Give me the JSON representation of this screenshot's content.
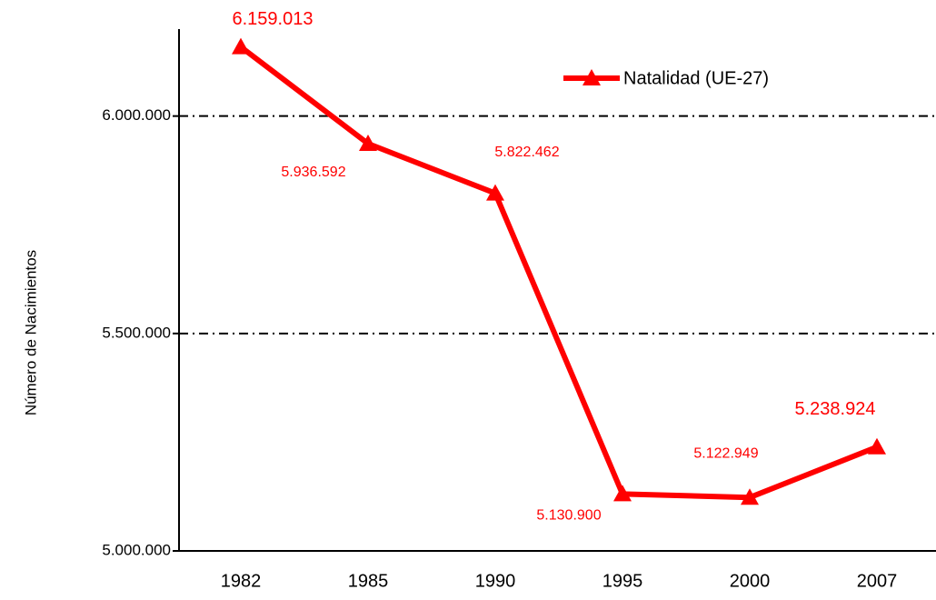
{
  "chart_data": {
    "type": "line",
    "y_axis_label": "Número de Nacimientos",
    "categories": [
      "1982",
      "1985",
      "1990",
      "1995",
      "2000",
      "2007"
    ],
    "series": [
      {
        "name": "Natalidad (UE-27)",
        "color": "#ff0000",
        "values": [
          6159013,
          5936592,
          5822462,
          5130900,
          5122949,
          5238924
        ],
        "value_labels": [
          "6.159.013",
          "5.936.592",
          "5.822.462",
          "5.130.900",
          "5.122.949",
          "5.238.924"
        ]
      }
    ],
    "ylim": [
      5000000,
      6200000
    ],
    "yticks": [
      {
        "value": 5000000,
        "label": "5.000.000"
      },
      {
        "value": 5500000,
        "label": "5.500.000"
      },
      {
        "value": 6000000,
        "label": "6.000.000"
      }
    ],
    "grid": true,
    "legend": "top-right"
  }
}
